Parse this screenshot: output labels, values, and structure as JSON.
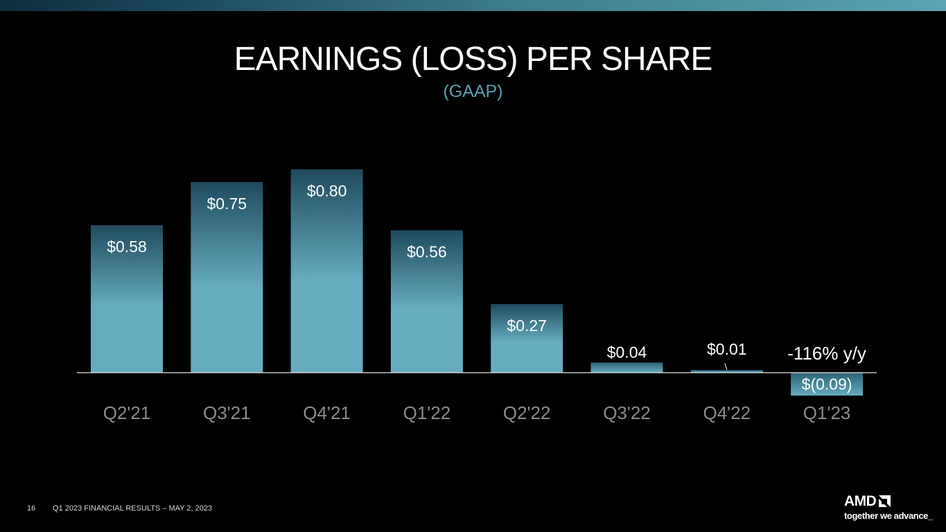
{
  "slide": {
    "title": "EARNINGS (LOSS) PER SHARE",
    "subtitle": "(GAAP)",
    "page_number": "16",
    "footer": "Q1 2023 FINANCIAL RESULTS – MAY 2, 2023"
  },
  "brand": {
    "logo_text": "AMD",
    "tagline": "together we advance_",
    "accent": "#5aa3b4",
    "bar_color_top": "#1f4a5e",
    "bar_color_bottom": "#66acc0"
  },
  "chart_data": {
    "type": "bar",
    "title": "EARNINGS (LOSS) PER SHARE",
    "subtitle": "(GAAP)",
    "categories": [
      "Q2'21",
      "Q3'21",
      "Q4'21",
      "Q1'22",
      "Q2'22",
      "Q3'22",
      "Q4'22",
      "Q1'23"
    ],
    "values": [
      0.58,
      0.75,
      0.8,
      0.56,
      0.27,
      0.04,
      0.01,
      -0.09
    ],
    "data_labels": [
      "$0.58",
      "$0.75",
      "$0.80",
      "$0.56",
      "$0.27",
      "$0.04",
      "$0.01",
      "$(0.09)"
    ],
    "annotation": "-116% y/y",
    "xlabel": "",
    "ylabel": "",
    "grid": false,
    "legend": "none"
  }
}
